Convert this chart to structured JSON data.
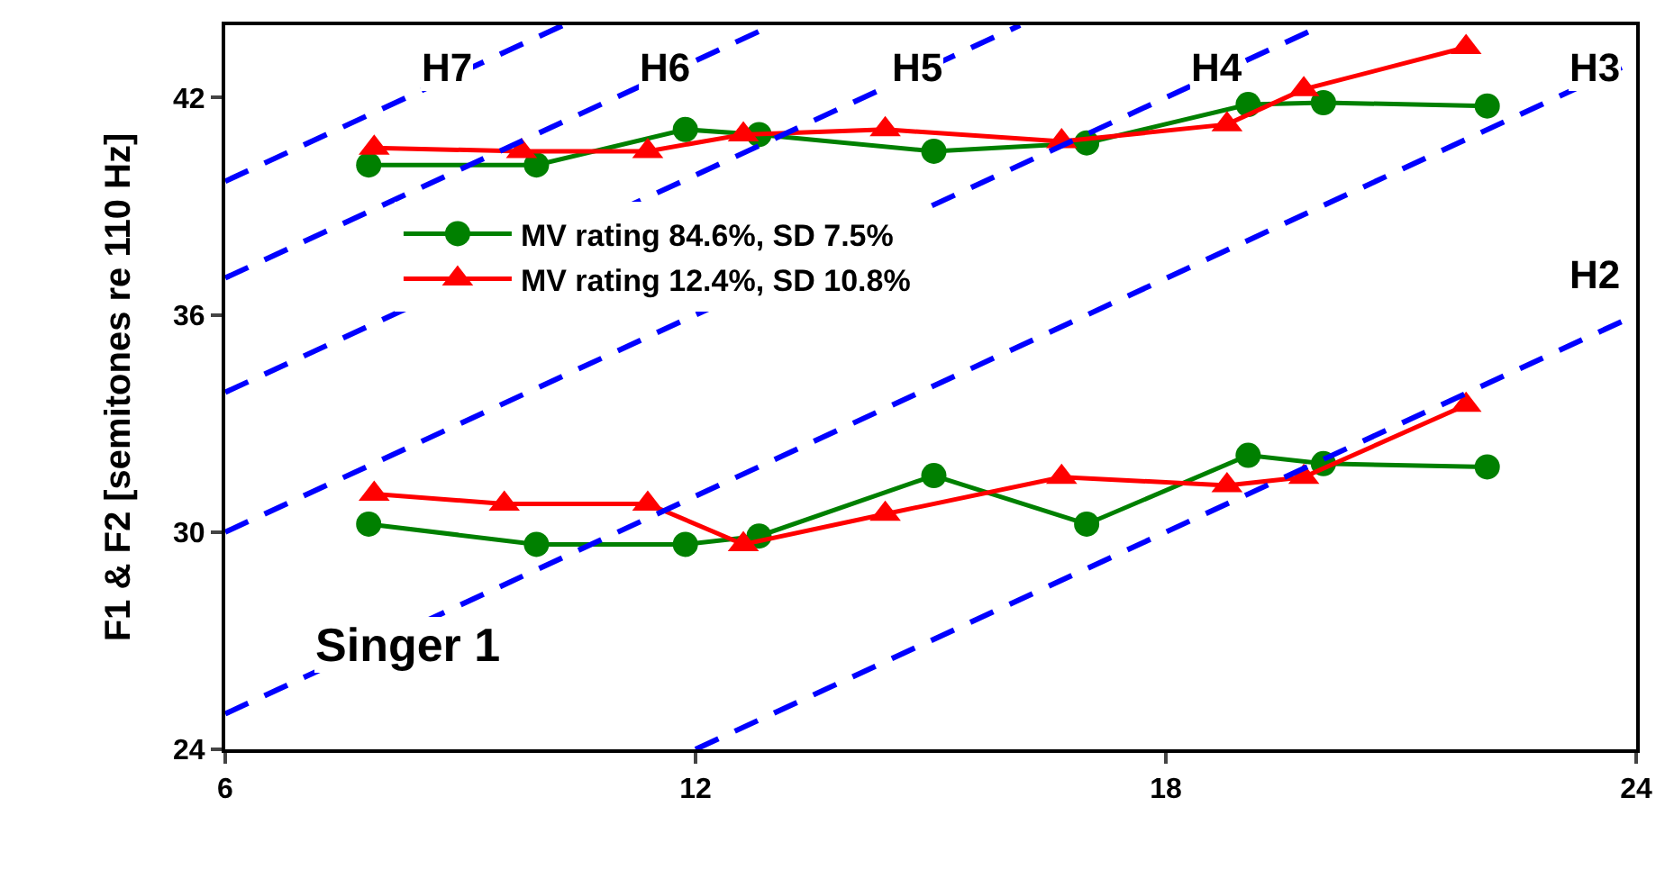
{
  "chart_data": {
    "type": "line",
    "ylabel": "F1 & F2 [semitones re 110 Hz]",
    "xlim": [
      6,
      24
    ],
    "xticks": [
      6,
      12,
      18,
      24
    ],
    "ylim": [
      24,
      44
    ],
    "yticks": [
      24,
      30,
      36,
      42
    ],
    "legend": "left",
    "series": [
      {
        "name": "MV rating 84.6%, SD 7.5%",
        "color": "#008000",
        "marker": "circle",
        "line_style": "solid",
        "x": [
          7.83,
          9.97,
          11.87,
          12.81,
          15.04,
          16.99,
          19.05,
          20.01,
          22.1,
          null,
          7.83,
          9.97,
          11.87,
          12.81,
          15.04,
          16.99,
          19.05,
          20.01,
          22.1
        ],
        "values": [
          40.14,
          40.14,
          41.12,
          40.98,
          40.52,
          40.75,
          41.81,
          41.86,
          41.77,
          null,
          30.22,
          29.66,
          29.66,
          29.89,
          31.56,
          30.22,
          32.12,
          31.89,
          31.8
        ]
      },
      {
        "name": "MV rating 12.4%, SD 10.8%",
        "color": "#ff0000",
        "marker": "triangle",
        "line_style": "solid",
        "x": [
          7.9,
          9.78,
          11.39,
          12.61,
          14.42,
          16.67,
          18.78,
          19.76,
          21.83,
          null,
          7.9,
          9.56,
          11.39,
          12.61,
          14.42,
          16.67,
          18.78,
          19.76,
          21.83
        ],
        "values": [
          40.61,
          40.52,
          40.52,
          40.98,
          41.12,
          40.79,
          41.26,
          42.23,
          43.39,
          null,
          31.05,
          30.78,
          30.78,
          29.66,
          30.5,
          31.52,
          31.29,
          31.52,
          33.51
        ]
      },
      {
        "color": "#0000ff",
        "marker": "none",
        "line_style": "dashed",
        "x": [
          6,
          10.31
        ],
        "values": [
          39.69,
          44
        ]
      },
      {
        "color": "#0000ff",
        "marker": "none",
        "line_style": "dashed",
        "x": [
          6,
          12.98
        ],
        "values": [
          37.02,
          44
        ]
      },
      {
        "color": "#0000ff",
        "marker": "none",
        "line_style": "dashed",
        "x": [
          6,
          16.14
        ],
        "values": [
          33.86,
          44
        ]
      },
      {
        "color": "#0000ff",
        "marker": "none",
        "line_style": "dashed",
        "x": [
          6,
          20
        ],
        "values": [
          30,
          44
        ]
      },
      {
        "color": "#0000ff",
        "marker": "none",
        "line_style": "dashed",
        "x": [
          6,
          24
        ],
        "values": [
          24.98,
          43.02
        ]
      },
      {
        "color": "#0000ff",
        "marker": "none",
        "line_style": "dashed",
        "x": [
          12,
          24
        ],
        "values": [
          24,
          36
        ]
      }
    ],
    "annotations": [
      "H7",
      "H6",
      "H5",
      "H4",
      "H3",
      "H2",
      "Singer 1"
    ]
  }
}
